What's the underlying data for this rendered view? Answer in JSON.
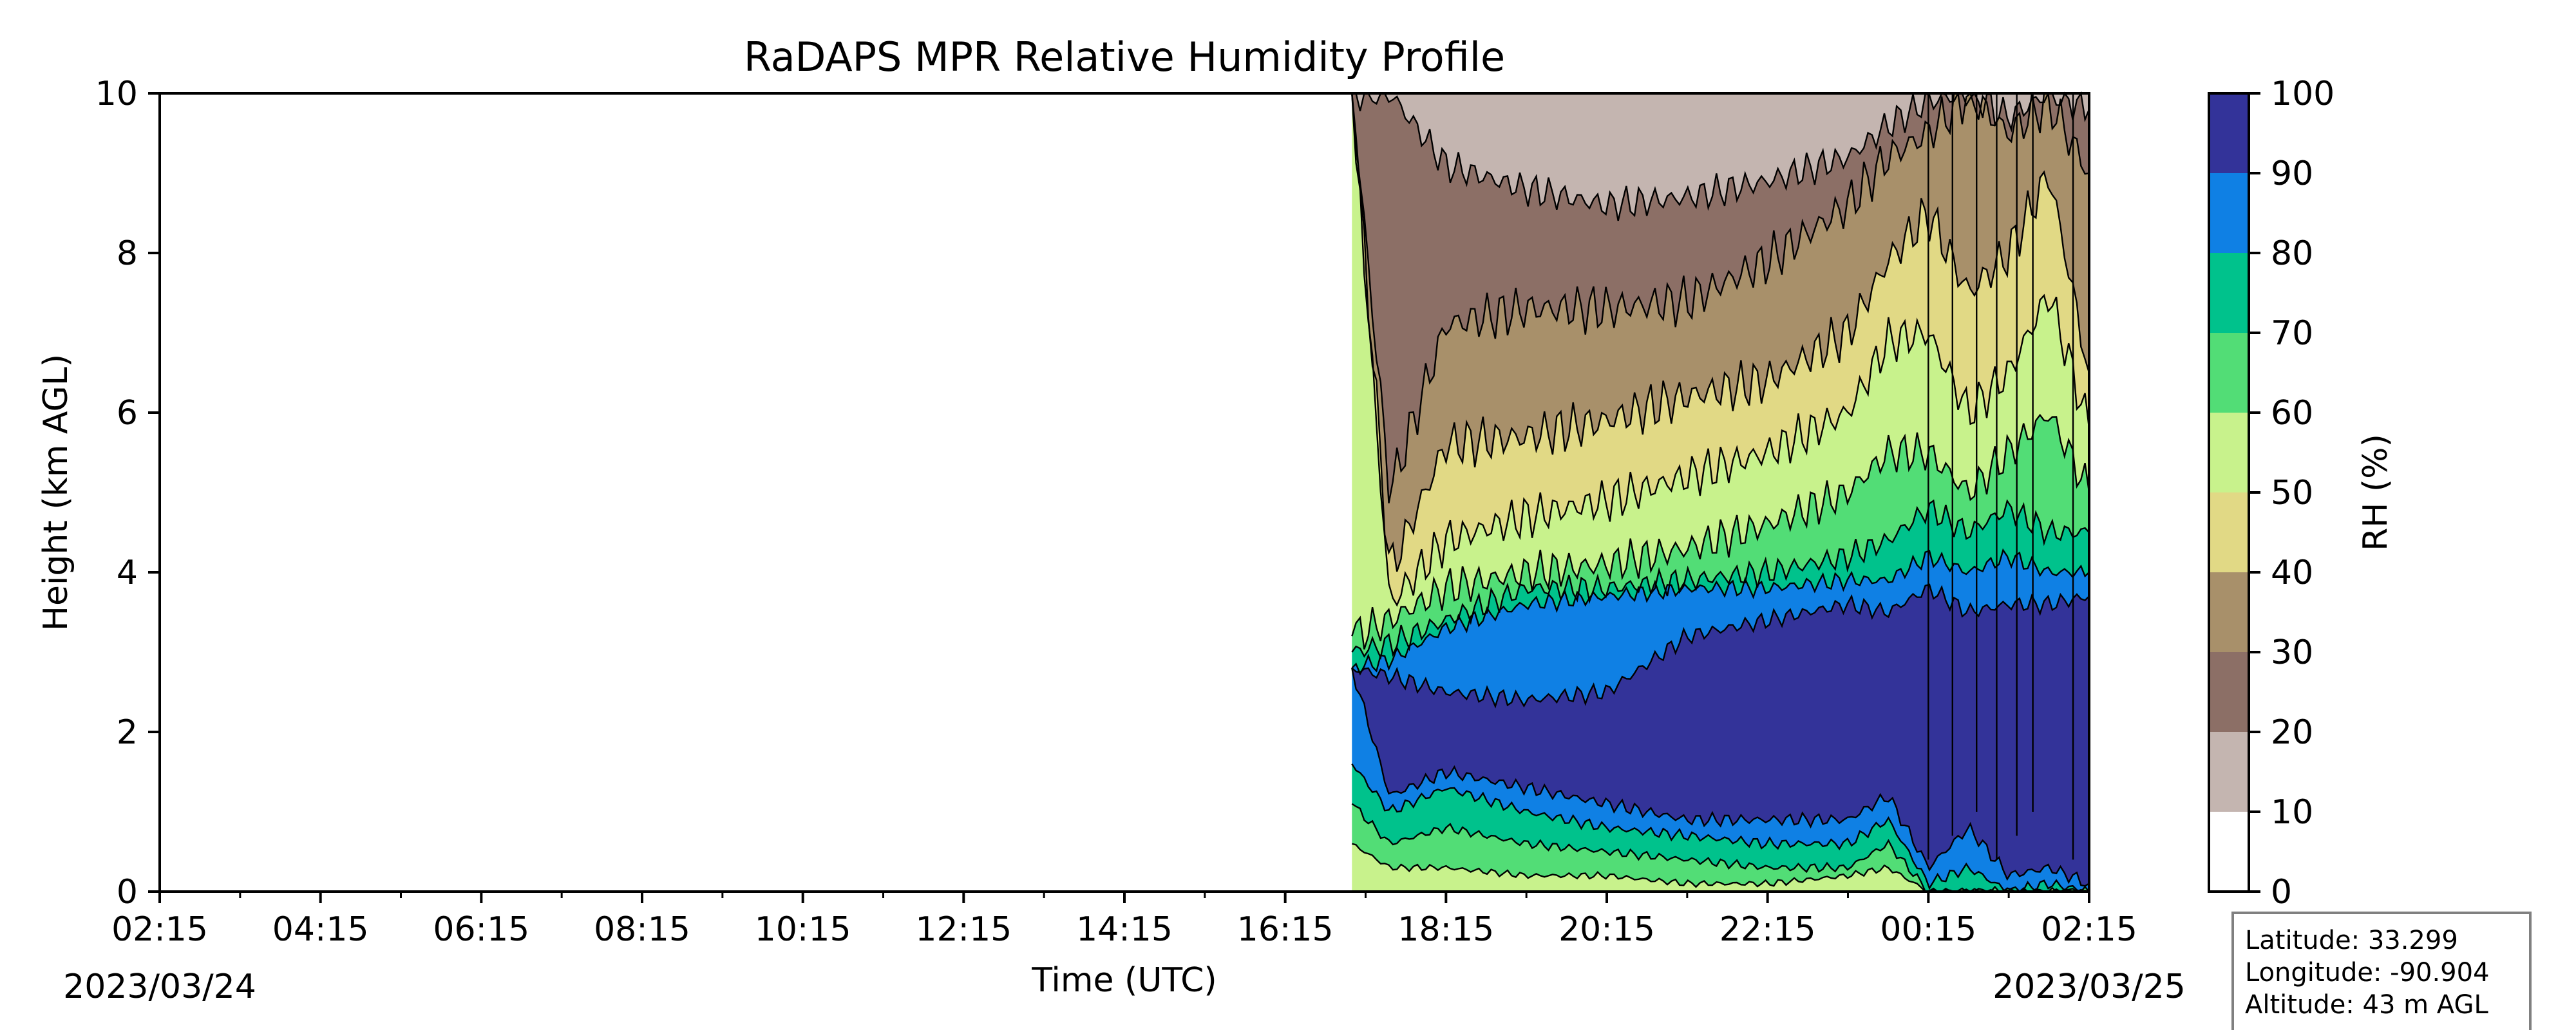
{
  "chart_data": {
    "type": "contour",
    "title": "RaDAPS MPR Relative Humidity Profile",
    "xlabel": "Time (UTC)",
    "ylabel": "Height (km AGL)",
    "x_ticks": [
      "02:15",
      "04:15",
      "06:15",
      "08:15",
      "10:15",
      "12:15",
      "14:15",
      "16:15",
      "18:15",
      "20:15",
      "22:15",
      "00:15",
      "02:15"
    ],
    "x_range_hours": [
      0,
      24
    ],
    "date_start": "2023/03/24",
    "date_end": "2023/03/25",
    "y_ticks": [
      "0",
      "2",
      "4",
      "6",
      "8",
      "10"
    ],
    "ylim": [
      0,
      10
    ],
    "data_start_time": "17:05",
    "colorbar": {
      "label": "RH (%)",
      "ticks": [
        "0",
        "10",
        "20",
        "30",
        "40",
        "50",
        "60",
        "70",
        "80",
        "90",
        "100"
      ],
      "levels": [
        0,
        10,
        20,
        30,
        40,
        50,
        60,
        70,
        80,
        90,
        100
      ],
      "colors": [
        "#ffffff",
        "#c4b5b0",
        "#8c6f66",
        "#a8906a",
        "#e1d985",
        "#c8f28c",
        "#52dd76",
        "#00c28c",
        "#0f80e4",
        "#333399"
      ]
    },
    "rh_boundaries_km": {
      "hours": [
        14.83,
        15.3,
        16,
        17,
        18,
        19,
        20,
        21,
        21.5,
        22,
        22.5,
        23,
        23.5,
        24
      ],
      "rh10": [
        10,
        10,
        9.1,
        8.8,
        8.6,
        8.7,
        8.9,
        9.2,
        9.6,
        9.9,
        10,
        9.7,
        10,
        9.8
      ],
      "rh20": [
        10,
        5.0,
        7.1,
        7.3,
        7.3,
        7.4,
        7.9,
        8.6,
        9.2,
        9.5,
        10,
        9.5,
        9.9,
        9.0
      ],
      "rh30": [
        10,
        4.0,
        5.6,
        5.7,
        5.9,
        6.2,
        6.4,
        7.0,
        7.9,
        8.5,
        7.5,
        8.0,
        9.0,
        6.5
      ],
      "rh40": [
        10,
        3.6,
        4.4,
        4.7,
        4.9,
        5.2,
        5.5,
        6.0,
        6.9,
        7.0,
        6.0,
        6.5,
        7.5,
        5.8
      ],
      "rh50": [
        3.2,
        3.4,
        3.8,
        4.0,
        4.1,
        4.3,
        4.6,
        5.0,
        5.5,
        5.5,
        5.0,
        5.5,
        6.0,
        5.0
      ],
      "rh60": [
        3.0,
        3.1,
        3.4,
        3.8,
        3.8,
        3.9,
        4.0,
        4.2,
        4.4,
        4.8,
        4.5,
        4.8,
        4.5,
        4.5
      ],
      "rh70": [
        2.8,
        2.9,
        3.3,
        3.6,
        3.7,
        3.8,
        3.8,
        3.9,
        3.9,
        4.2,
        4.0,
        4.2,
        4.0,
        4.0
      ],
      "rh80": [
        2.8,
        2.7,
        2.5,
        2.4,
        2.5,
        3.2,
        3.4,
        3.6,
        3.5,
        3.8,
        3.5,
        3.6,
        3.6,
        3.7
      ],
      "rh90_bottom": [
        2.8,
        1.2,
        1.5,
        1.3,
        1.1,
        0.9,
        0.9,
        0.9,
        1.2,
        0.3,
        0.8,
        0.2,
        0.3,
        0.1
      ],
      "rh80_bottom": [
        1.6,
        1.0,
        1.3,
        1.0,
        0.8,
        0.7,
        0.6,
        0.6,
        0.9,
        0.1,
        0.3,
        0.0,
        0.1,
        0.0
      ],
      "rh70_bottom": [
        1.1,
        0.6,
        0.8,
        0.6,
        0.5,
        0.4,
        0.3,
        0.3,
        0.6,
        0.0,
        0.0,
        0.0,
        0.0,
        0.0
      ],
      "rh60_bottom": [
        0.6,
        0.3,
        0.3,
        0.2,
        0.2,
        0.1,
        0.1,
        0.2,
        0.3,
        0.0,
        0.0,
        0.0,
        0.0,
        0.0
      ]
    }
  },
  "info_box": {
    "latitude": "Latitude: 33.299",
    "longitude": "Longitude: -90.904",
    "altitude": "Altitude: 43 m AGL"
  }
}
